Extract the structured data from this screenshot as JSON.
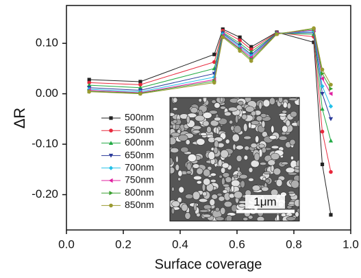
{
  "chart_data": {
    "type": "line",
    "x_label": "Surface coverage",
    "y_label": "ΔR",
    "x": [
      0.08,
      0.26,
      0.52,
      0.55,
      0.61,
      0.65,
      0.74,
      0.87,
      0.9,
      0.93
    ],
    "xlim": [
      0,
      1
    ],
    "ylim": [
      -0.27,
      0.175
    ],
    "xticks": [
      {
        "value": 0,
        "label": "0.0"
      },
      {
        "value": 0.2,
        "label": "0.2"
      },
      {
        "value": 0.4,
        "label": "0.4"
      },
      {
        "value": 0.6,
        "label": "0.6"
      },
      {
        "value": 0.8,
        "label": "0.8"
      },
      {
        "value": 1,
        "label": "1.0"
      }
    ],
    "yticks": [
      {
        "value": -0.2,
        "label": "-0.20"
      },
      {
        "value": -0.1,
        "label": "-0.10"
      },
      {
        "value": 0,
        "label": "0.00"
      },
      {
        "value": 0.1,
        "label": "0.10"
      }
    ],
    "legend": "left",
    "series": [
      {
        "name": "500nm",
        "color": "#222222",
        "marker": "square",
        "values": [
          0.028,
          0.024,
          0.078,
          0.128,
          0.112,
          0.093,
          0.122,
          0.102,
          -0.14,
          -0.24
        ]
      },
      {
        "name": "550nm",
        "color": "#e8283c",
        "marker": "circle",
        "values": [
          0.022,
          0.018,
          0.063,
          0.125,
          0.106,
          0.088,
          0.121,
          0.113,
          -0.075,
          -0.155
        ]
      },
      {
        "name": "600nm",
        "color": "#22aa44",
        "marker": "triangle-up",
        "values": [
          0.017,
          0.012,
          0.05,
          0.122,
          0.1,
          0.083,
          0.12,
          0.118,
          -0.03,
          -0.093
        ]
      },
      {
        "name": "650nm",
        "color": "#2a3a9a",
        "marker": "triangle-down",
        "values": [
          0.012,
          0.007,
          0.04,
          0.12,
          0.096,
          0.078,
          0.12,
          0.121,
          0.0,
          -0.05
        ]
      },
      {
        "name": "700nm",
        "color": "#22c0e8",
        "marker": "diamond",
        "values": [
          0.009,
          0.004,
          0.033,
          0.118,
          0.093,
          0.075,
          0.119,
          0.124,
          0.015,
          -0.025
        ]
      },
      {
        "name": "750nm",
        "color": "#e020a0",
        "marker": "triangle-left",
        "values": [
          0.007,
          0.002,
          0.028,
          0.116,
          0.09,
          0.072,
          0.119,
          0.126,
          0.03,
          0.0
        ]
      },
      {
        "name": "800nm",
        "color": "#3aa030",
        "marker": "triangle-right",
        "values": [
          0.005,
          0.001,
          0.025,
          0.114,
          0.088,
          0.068,
          0.119,
          0.128,
          0.04,
          0.01
        ]
      },
      {
        "name": "850nm",
        "color": "#9a9a30",
        "marker": "circle",
        "values": [
          0.004,
          0.0,
          0.022,
          0.112,
          0.085,
          0.065,
          0.118,
          0.13,
          0.048,
          0.018
        ]
      }
    ],
    "annotations": [
      "1μm"
    ]
  }
}
